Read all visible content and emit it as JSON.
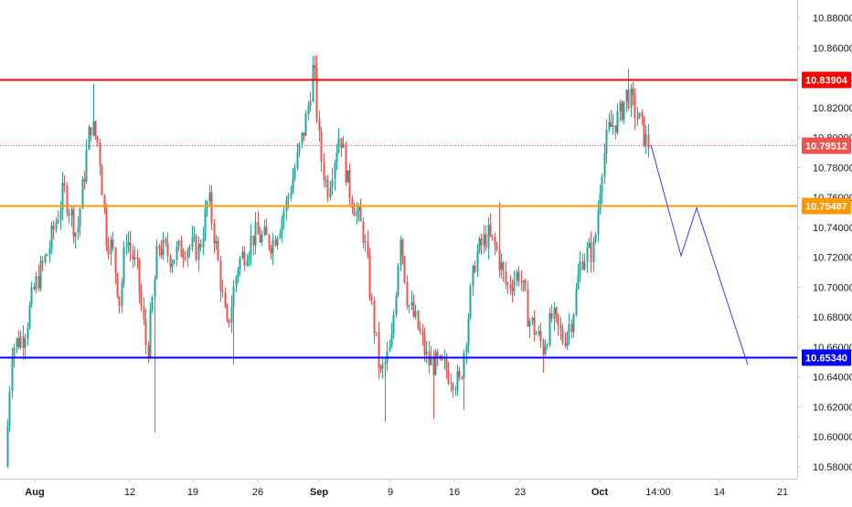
{
  "chart_data": {
    "type": "candlestick",
    "y_axis": {
      "range": [
        10.572,
        10.892
      ],
      "ticks": [
        "10.58000",
        "10.60000",
        "10.62000",
        "10.64000",
        "10.66000",
        "10.68000",
        "10.70000",
        "10.72000",
        "10.74000",
        "10.76000",
        "10.78000",
        "10.80000",
        "10.82000",
        "10.84000",
        "10.86000",
        "10.88000"
      ],
      "position": "right"
    },
    "x_axis": {
      "tick_labels": [
        "Aug",
        "12",
        "19",
        "26",
        "Sep",
        "9",
        "16",
        "23",
        "Oct",
        "14:00",
        "14",
        "21"
      ],
      "months_bold": [
        "Aug",
        "Sep",
        "Oct"
      ]
    },
    "candle_colors": {
      "up": "#26a69a",
      "down": "#ef5350"
    },
    "candles_summary": {
      "start": 10.58,
      "aug_high": 10.836,
      "aug_low": 10.603,
      "sep_high": 10.855,
      "sep_low": 10.61,
      "oct_high": 10.846,
      "last": 10.79512
    },
    "horizontal_lines": [
      {
        "label": "10.83904",
        "value": 10.83904,
        "color": "#ff0000",
        "style": "solid"
      },
      {
        "label": "10.75487",
        "value": 10.75487,
        "color": "#ff9800",
        "style": "solid"
      },
      {
        "label": "10.65340",
        "value": 10.6534,
        "color": "#0000ff",
        "style": "solid"
      },
      {
        "label": "10.79512",
        "value": 10.79512,
        "color": "#ef5350",
        "style": "dotted"
      }
    ],
    "projection": {
      "color": "#3a3af0",
      "path_values": [
        10.79512,
        10.721,
        10.753,
        10.648
      ]
    },
    "grid": false,
    "legend": "none"
  }
}
